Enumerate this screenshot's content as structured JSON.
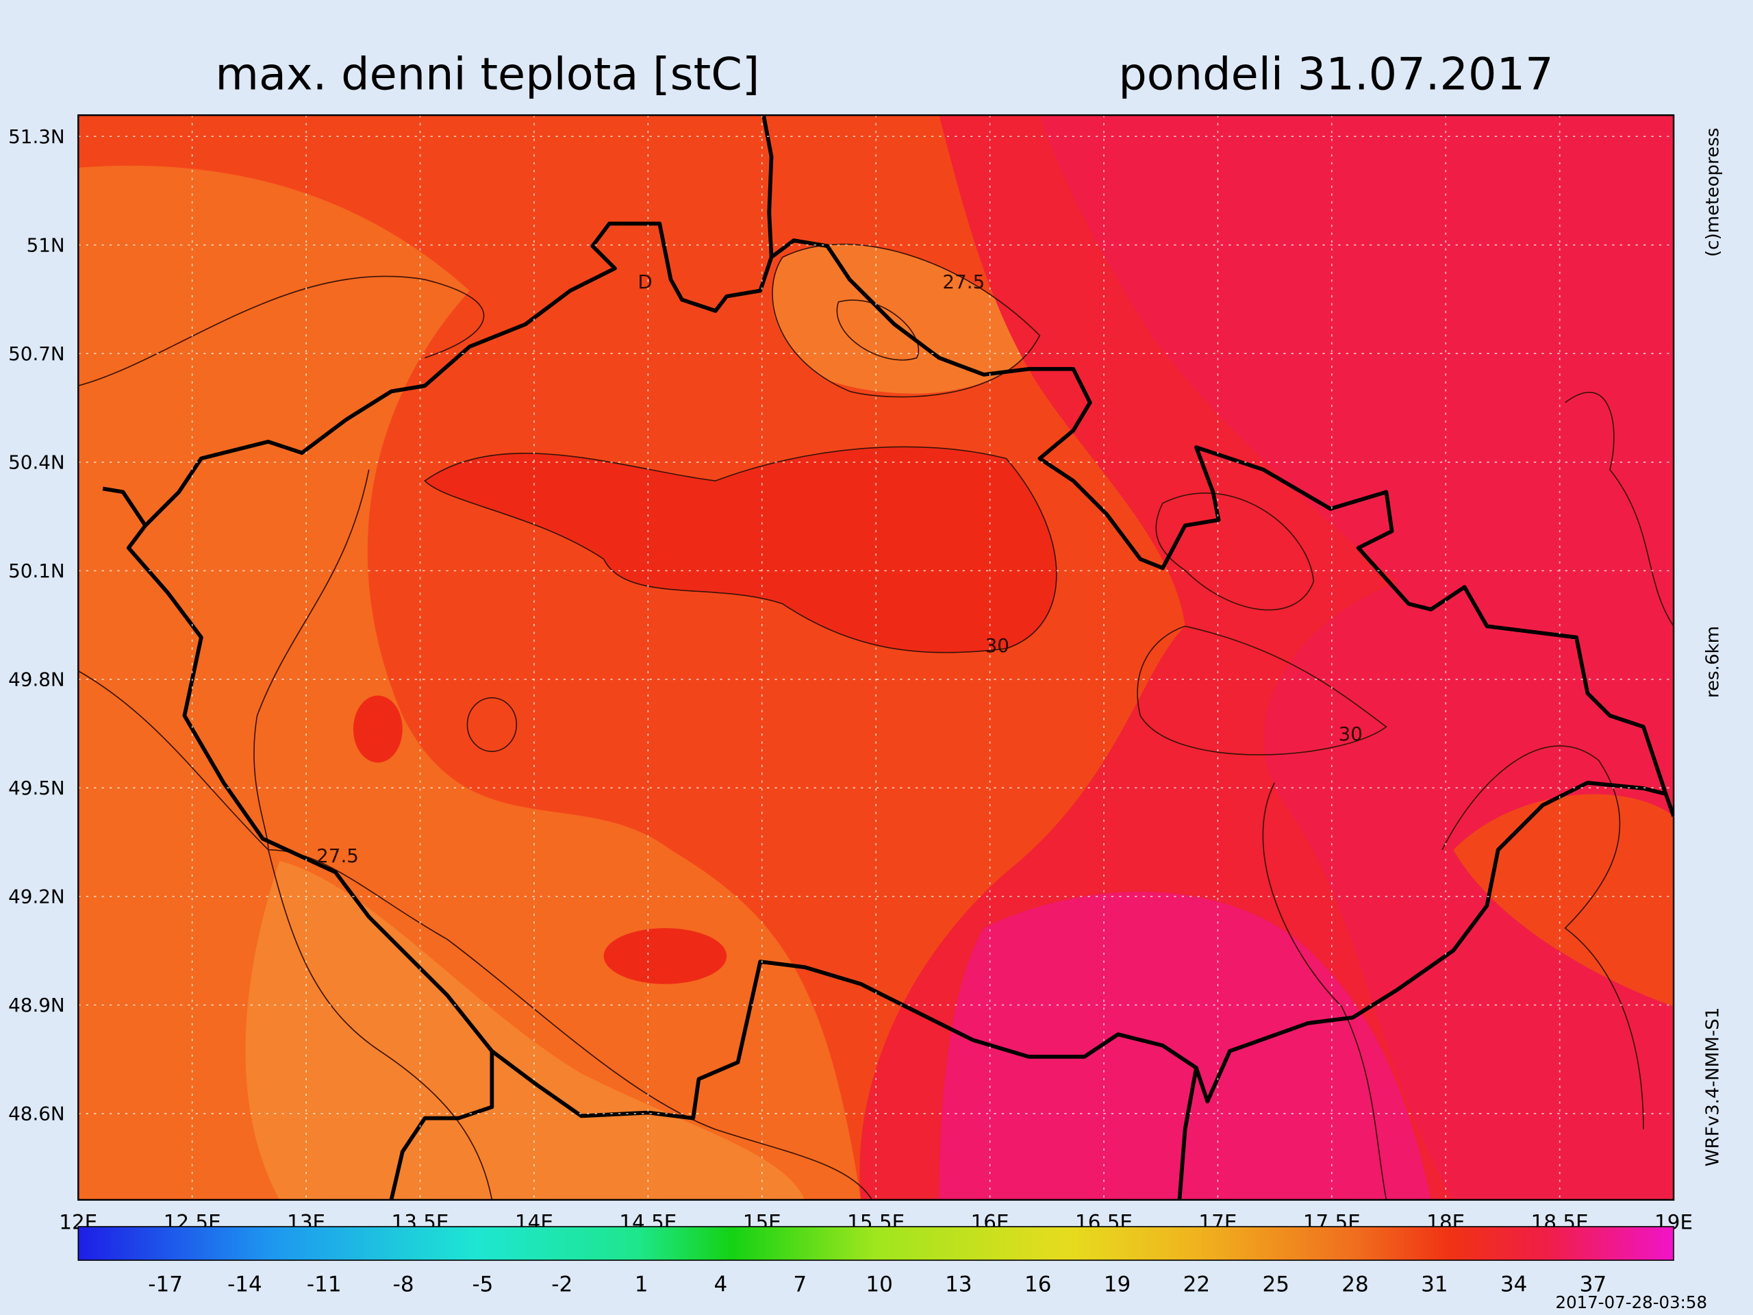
{
  "header": {
    "title": "max. denni teplota [stC]",
    "date": "pondeli 31.07.2017"
  },
  "map": {
    "lat_labels": [
      "51.3N",
      "51N",
      "50.7N",
      "50.4N",
      "50.1N",
      "49.8N",
      "49.5N",
      "49.2N",
      "48.9N",
      "48.6N"
    ],
    "lon_labels": [
      "12E",
      "12.5E",
      "13E",
      "13.5E",
      "14E",
      "14.5E",
      "15E",
      "15.5E",
      "16E",
      "16.5E",
      "17E",
      "17.5E",
      "18E",
      "18.5E",
      "19E"
    ],
    "contour_labels": [
      "27.5",
      "D",
      "30",
      "30",
      "27.5"
    ]
  },
  "colorbar": {
    "ticks": [
      -17,
      -14,
      -11,
      -8,
      -5,
      -2,
      1,
      4,
      7,
      10,
      13,
      16,
      19,
      22,
      25,
      28,
      31,
      34,
      37
    ]
  },
  "side_labels": [
    "(c)meteopress",
    "res.6km",
    "WRFv3.4-NMM-S1"
  ],
  "timestamp": "2017-07-28-03:58"
}
